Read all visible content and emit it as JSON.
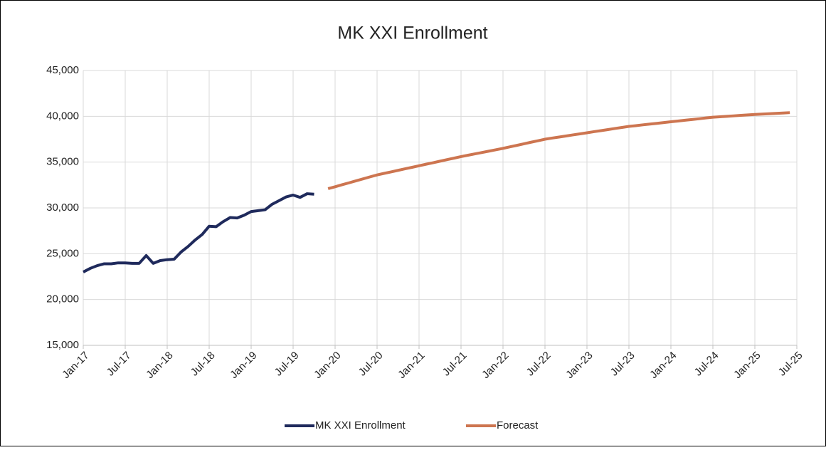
{
  "chart_data": {
    "type": "line",
    "title": "MK XXI Enrollment",
    "categories": [
      "Jan-17",
      null,
      null,
      null,
      null,
      null,
      "Jul-17",
      null,
      null,
      null,
      null,
      null,
      "Jan-18",
      null,
      null,
      null,
      null,
      null,
      "Jul-18",
      null,
      null,
      null,
      null,
      null,
      "Jan-19",
      null,
      null,
      null,
      null,
      null,
      "Jul-19",
      null,
      null,
      null,
      null,
      null,
      "Jan-20",
      null,
      null,
      null,
      null,
      null,
      "Jul-20",
      null,
      null,
      null,
      null,
      null,
      "Jan-21",
      null,
      null,
      null,
      null,
      null,
      "Jul-21",
      null,
      null,
      null,
      null,
      null,
      "Jan-22",
      null,
      null,
      null,
      null,
      null,
      "Jul-22",
      null,
      null,
      null,
      null,
      null,
      "Jan-23",
      null,
      null,
      null,
      null,
      null,
      "Jul-23",
      null,
      null,
      null,
      null,
      null,
      "Jan-24",
      null,
      null,
      null,
      null,
      null,
      "Jul-24",
      null,
      null,
      null,
      null,
      null,
      "Jan-25",
      null,
      null,
      null,
      null,
      null,
      "Jul-25"
    ],
    "series": [
      {
        "name": "MK XXI Enrollment",
        "color": "#1f2a5c",
        "values": [
          23000,
          23400,
          23700,
          23900,
          23900,
          24000,
          24000,
          23950,
          23950,
          24800,
          23950,
          24250,
          24350,
          24400,
          25200,
          25800,
          26500,
          27100,
          28000,
          27950,
          28500,
          28950,
          28900,
          29200,
          29600,
          29700,
          29800,
          30400,
          30800,
          31200,
          31400,
          31150,
          31550,
          31500,
          null,
          null,
          null,
          null,
          null,
          null,
          null,
          null,
          null,
          null,
          null,
          null,
          null,
          null,
          null,
          null,
          null,
          null,
          null,
          null,
          null,
          null,
          null,
          null,
          null,
          null,
          null,
          null,
          null,
          null,
          null,
          null,
          null,
          null,
          null,
          null,
          null,
          null,
          null,
          null,
          null,
          null,
          null,
          null,
          null,
          null,
          null,
          null,
          null,
          null,
          null,
          null,
          null,
          null,
          null,
          null,
          null,
          null,
          null,
          null,
          null,
          null,
          null,
          null,
          null,
          null,
          null,
          null,
          null
        ]
      },
      {
        "name": "Forecast",
        "color": "#cd7550",
        "values": [
          null,
          null,
          null,
          null,
          null,
          null,
          null,
          null,
          null,
          null,
          null,
          null,
          null,
          null,
          null,
          null,
          null,
          null,
          null,
          null,
          null,
          null,
          null,
          null,
          null,
          null,
          null,
          null,
          null,
          null,
          null,
          null,
          null,
          null,
          null,
          32100,
          32310,
          32530,
          32740,
          32960,
          33170,
          33390,
          33600,
          33770,
          33930,
          34100,
          34270,
          34430,
          34600,
          34770,
          34930,
          35100,
          35270,
          35430,
          35600,
          35750,
          35900,
          36050,
          36200,
          36350,
          36500,
          36670,
          36830,
          37000,
          37170,
          37330,
          37500,
          37620,
          37730,
          37850,
          37970,
          38080,
          38200,
          38320,
          38430,
          38550,
          38670,
          38780,
          38900,
          38980,
          39070,
          39150,
          39230,
          39320,
          39400,
          39480,
          39570,
          39650,
          39730,
          39820,
          39900,
          39950,
          40000,
          40050,
          40100,
          40150,
          40200,
          40240,
          40280,
          40320,
          40360,
          40400,
          null
        ]
      }
    ],
    "ylim": [
      15000,
      45000
    ],
    "yticks": [
      {
        "value": 15000,
        "label": "15,000"
      },
      {
        "value": 20000,
        "label": "20,000"
      },
      {
        "value": 25000,
        "label": "25,000"
      },
      {
        "value": 30000,
        "label": "30,000"
      },
      {
        "value": 35000,
        "label": "35,000"
      },
      {
        "value": 40000,
        "label": "40,000"
      },
      {
        "value": 45000,
        "label": "45,000"
      }
    ],
    "grid": true,
    "legend": "bottom"
  }
}
